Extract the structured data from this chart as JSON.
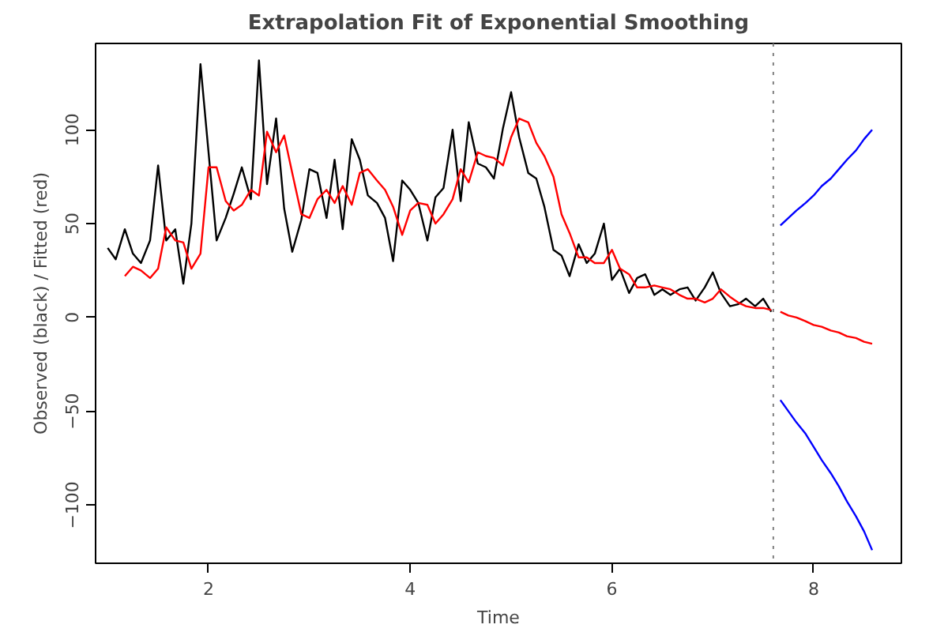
{
  "chart_data": {
    "type": "line",
    "title": "Extrapolation Fit of Exponential Smoothing",
    "xlabel": "Time",
    "ylabel": "Observed (black) / Fitted (red)",
    "xlim": [
      0.88,
      8.87
    ],
    "ylim": [
      -131,
      146
    ],
    "xticks": [
      2,
      4,
      6,
      8
    ],
    "yticks": [
      -100,
      -50,
      0,
      50,
      100
    ],
    "grid": false,
    "line_style": "solid",
    "series": [
      {
        "color": "#000000",
        "x": [
          1.0,
          1.08,
          1.17,
          1.25,
          1.33,
          1.42,
          1.5,
          1.58,
          1.67,
          1.75,
          1.83,
          1.92,
          2.0,
          2.08,
          2.17,
          2.25,
          2.33,
          2.42,
          2.5,
          2.58,
          2.67,
          2.75,
          2.83,
          2.92,
          3.0,
          3.08,
          3.17,
          3.25,
          3.33,
          3.42,
          3.5,
          3.58,
          3.67,
          3.75,
          3.83,
          3.92,
          4.0,
          4.08,
          4.17,
          4.25,
          4.33,
          4.42,
          4.5,
          4.58,
          4.67,
          4.75,
          4.83,
          4.92,
          5.0,
          5.08,
          5.17,
          5.25,
          5.33,
          5.42,
          5.5,
          5.58,
          5.67,
          5.75,
          5.83,
          5.92,
          6.0,
          6.08,
          6.17,
          6.25,
          6.33,
          6.42,
          6.5,
          6.58,
          6.67,
          6.75,
          6.83,
          6.92,
          7.0,
          7.08,
          7.17,
          7.25,
          7.33,
          7.42,
          7.5,
          7.58
        ],
        "values": [
          37,
          31,
          47,
          34,
          29,
          41,
          81,
          41,
          47,
          18,
          50,
          135,
          88,
          41,
          53,
          66,
          80,
          63,
          137,
          71,
          106,
          58,
          35,
          52,
          79,
          77,
          53,
          84,
          47,
          95,
          84,
          65,
          61,
          53,
          30,
          73,
          68,
          61,
          41,
          64,
          69,
          100,
          62,
          104,
          82,
          80,
          74,
          101,
          120,
          96,
          77,
          74,
          59,
          36,
          33,
          22,
          39,
          29,
          34,
          50,
          20,
          26,
          13,
          21,
          23,
          12,
          15,
          12,
          15,
          16,
          9,
          16,
          24,
          13,
          6,
          7,
          10,
          6,
          10,
          3
        ]
      },
      {
        "color": "#ff0000",
        "x": [
          1.17,
          1.25,
          1.33,
          1.42,
          1.5,
          1.58,
          1.67,
          1.75,
          1.83,
          1.92,
          2.0,
          2.08,
          2.17,
          2.25,
          2.33,
          2.42,
          2.5,
          2.58,
          2.67,
          2.75,
          2.83,
          2.92,
          3.0,
          3.08,
          3.17,
          3.25,
          3.33,
          3.42,
          3.5,
          3.58,
          3.67,
          3.75,
          3.83,
          3.92,
          4.0,
          4.08,
          4.17,
          4.25,
          4.33,
          4.42,
          4.5,
          4.58,
          4.67,
          4.75,
          4.83,
          4.92,
          5.0,
          5.08,
          5.17,
          5.25,
          5.33,
          5.42,
          5.5,
          5.58,
          5.67,
          5.75,
          5.83,
          5.92,
          6.0,
          6.08,
          6.17,
          6.25,
          6.33,
          6.42,
          6.5,
          6.58,
          6.67,
          6.75,
          6.83,
          6.92,
          7.0,
          7.08,
          7.17,
          7.25,
          7.33,
          7.42,
          7.5,
          7.58
        ],
        "values": [
          22,
          27,
          25,
          21,
          26,
          48,
          41,
          40,
          26,
          34,
          80,
          80,
          62,
          57,
          60,
          68,
          65,
          99,
          88,
          97,
          77,
          55,
          53,
          63,
          68,
          61,
          70,
          60,
          77,
          79,
          73,
          68,
          59,
          44,
          57,
          61,
          60,
          50,
          55,
          63,
          79,
          72,
          88,
          86,
          85,
          81,
          96,
          106,
          104,
          93,
          86,
          75,
          55,
          45,
          32,
          32,
          29,
          29,
          36,
          26,
          23,
          16,
          16,
          17,
          16,
          15,
          12,
          10,
          10,
          8,
          10,
          15,
          11,
          8,
          6,
          5,
          5,
          4
        ]
      },
      {
        "color": "#ff0000",
        "x": [
          7.67,
          7.75,
          7.83,
          7.92,
          8.0,
          8.08,
          8.17,
          8.25,
          8.33,
          8.42,
          8.5,
          8.58
        ],
        "values": [
          3,
          1,
          0,
          -2,
          -4,
          -5,
          -7,
          -8,
          -10,
          -11,
          -13,
          -14
        ]
      },
      {
        "color": "#0000ff",
        "x": [
          7.67,
          7.75,
          7.83,
          7.92,
          8.0,
          8.08,
          8.17,
          8.25,
          8.33,
          8.42,
          8.5,
          8.58
        ],
        "values": [
          49,
          53,
          57,
          61,
          65,
          70,
          74,
          79,
          84,
          89,
          95,
          100
        ]
      },
      {
        "color": "#0000ff",
        "x": [
          7.67,
          7.75,
          7.83,
          7.92,
          8.0,
          8.08,
          8.17,
          8.25,
          8.33,
          8.42,
          8.5,
          8.58
        ],
        "values": [
          -44,
          -50,
          -56,
          -62,
          -69,
          -76,
          -83,
          -90,
          -98,
          -106,
          -114,
          -124
        ]
      }
    ],
    "ref_lines": [
      {
        "axis": "x",
        "value": 7.6,
        "color": "#808080",
        "line_style": "dotted"
      }
    ]
  }
}
